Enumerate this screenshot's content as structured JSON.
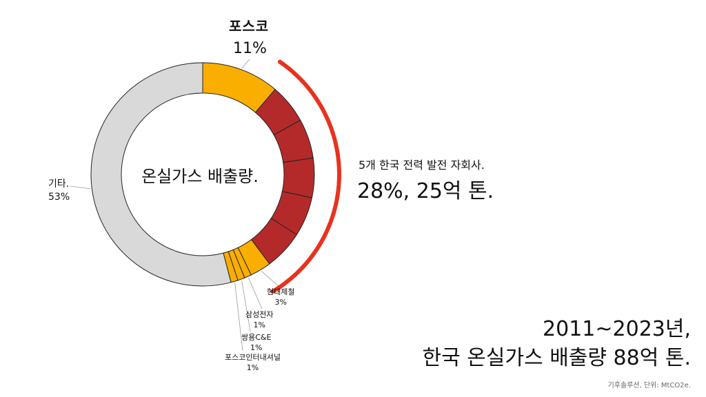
{
  "chart_data": {
    "type": "pie",
    "style": "donut",
    "center_label": "온실가스 배출량.",
    "slices": [
      {
        "label": "포스코",
        "value": 11,
        "value_label": "11%",
        "color": "#f9ae00",
        "group": "posco"
      },
      {
        "label": "",
        "value": 5.6,
        "color": "#b42a2a",
        "group": "gencos"
      },
      {
        "label": "",
        "value": 5.6,
        "color": "#b42a2a",
        "group": "gencos"
      },
      {
        "label": "",
        "value": 5.6,
        "color": "#b42a2a",
        "group": "gencos"
      },
      {
        "label": "",
        "value": 5.6,
        "color": "#b42a2a",
        "group": "gencos"
      },
      {
        "label": "",
        "value": 5.6,
        "color": "#b42a2a",
        "group": "gencos"
      },
      {
        "label": "현대제철",
        "value": 3,
        "value_label": "3%",
        "color": "#f9ae00",
        "group": "other_corp"
      },
      {
        "label": "삼성전자",
        "value": 1,
        "value_label": "1%",
        "color": "#f9ae00",
        "group": "other_corp"
      },
      {
        "label": "쌍용C&E",
        "value": 1,
        "value_label": "1%",
        "color": "#f9ae00",
        "group": "other_corp"
      },
      {
        "label": "포스코인터내셔널",
        "value": 1,
        "value_label": "1%",
        "color": "#f9ae00",
        "group": "other_corp"
      },
      {
        "label": "기타.",
        "value": 53,
        "value_label": "53%",
        "color": "#d9d9d9",
        "group": "other"
      }
    ],
    "colors": {
      "posco": "#f9ae00",
      "gencos": "#b42a2a",
      "other": "#d9d9d9",
      "bracket": "#e8321e",
      "outline": "#222222"
    }
  },
  "labels": {
    "posco_name": "포스코",
    "posco_pct": "11%",
    "kita_name": "기타.",
    "kita_pct": "53%",
    "hyundai_name": "현대제철",
    "hyundai_pct": "3%",
    "samsung_name": "삼성전자",
    "samsung_pct": "1%",
    "ssangyong_name": "쌍용C&E",
    "ssangyong_pct": "1%",
    "poscointl_name": "포스코인터내셔널",
    "poscointl_pct": "1%"
  },
  "annotation": {
    "sub": "5개 한국 전력 발전 자회사.",
    "main": "28%, 25억 톤."
  },
  "footer": {
    "line1": "2011~2023년,",
    "line2": "한국 온실가스 배출량 88억 톤.",
    "source": "기후솔루션, 단위: MtCO2e."
  }
}
